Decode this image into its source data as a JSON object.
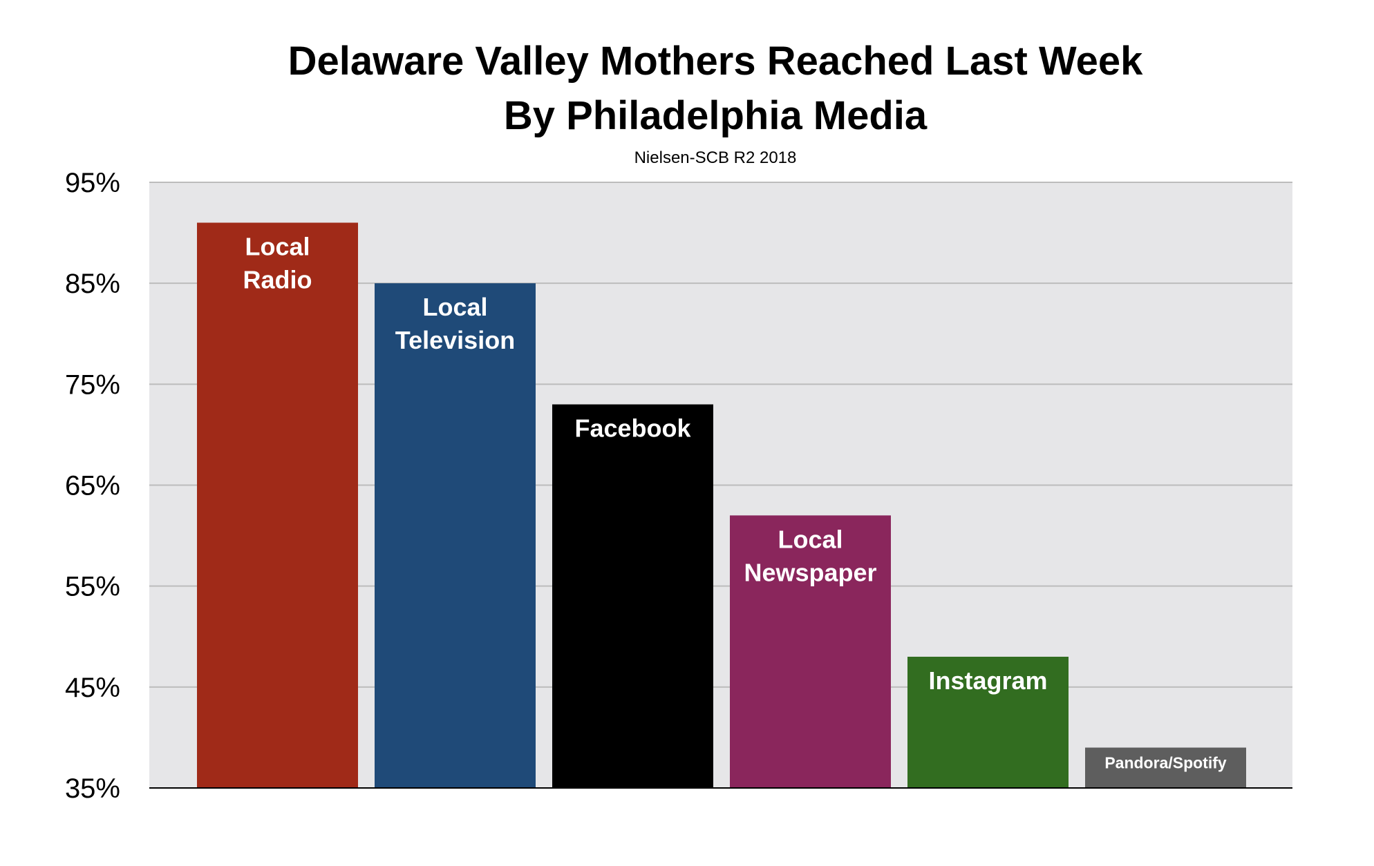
{
  "chart_data": {
    "type": "bar",
    "title_line1": "Delaware Valley Mothers Reached Last Week",
    "title_line2": "By Philadelphia Media",
    "subtitle": "Nielsen-SCB R2 2018",
    "categories": [
      "Local Radio",
      "Local Television",
      "Facebook",
      "Local Newspaper",
      "Instagram",
      "Pandora/Spotify"
    ],
    "label_lines": [
      [
        "Local",
        "Radio"
      ],
      [
        "Local",
        "Television"
      ],
      [
        "Facebook"
      ],
      [
        "Local",
        "Newspaper"
      ],
      [
        "Instagram"
      ],
      [
        "Pandora/Spotify"
      ]
    ],
    "values": [
      91,
      85,
      73,
      62,
      48,
      39
    ],
    "colors": [
      "#a02a18",
      "#1f4a78",
      "#000000",
      "#8a265c",
      "#326d20",
      "#5e5e5e"
    ],
    "ylim": [
      35,
      95
    ],
    "yticks": [
      35,
      45,
      55,
      65,
      75,
      85,
      95
    ],
    "ytick_labels": [
      "35%",
      "45%",
      "55%",
      "65%",
      "75%",
      "85%",
      "95%"
    ],
    "grid": true,
    "plot_background": "#e6e6e8",
    "grid_color": "#bcbcbc",
    "xlabel": "",
    "ylabel": ""
  }
}
